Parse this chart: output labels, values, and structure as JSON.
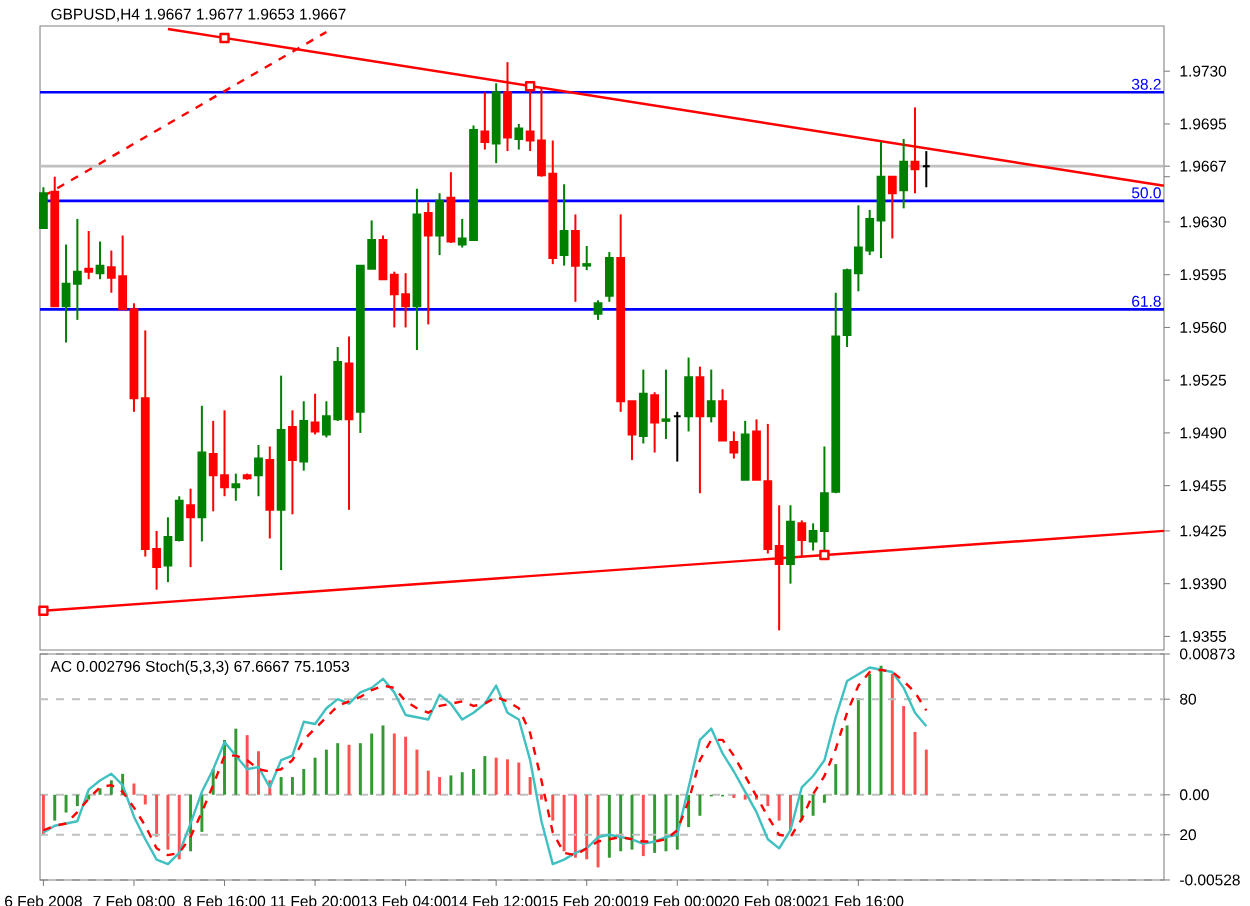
{
  "chart_data": [
    {
      "type": "candlestick",
      "title": "GBPUSD,H4 1.9667 1.9677 1.9653 1.9667",
      "categories": [
        null,
        null,
        null,
        null,
        null,
        null,
        null,
        null,
        null,
        null,
        null,
        null,
        null,
        null,
        null,
        null,
        null,
        null,
        null,
        null,
        null,
        null,
        null,
        null,
        null,
        null,
        null,
        null,
        null,
        null,
        null,
        null,
        null,
        null,
        null,
        null,
        null,
        null,
        null,
        null,
        null,
        null,
        null,
        null,
        null,
        null,
        null,
        null,
        null,
        null,
        null,
        null,
        null,
        null,
        null,
        null,
        null,
        null,
        null,
        null,
        null,
        null,
        null,
        null,
        null,
        null,
        null,
        null,
        null,
        null,
        null,
        null,
        null,
        null,
        null,
        null,
        null,
        null,
        null,
        null,
        null,
        null,
        null,
        null,
        null,
        null,
        null,
        null,
        null,
        null,
        null,
        null,
        null,
        null,
        null,
        null,
        null,
        null,
        null,
        null
      ],
      "ohlc": [
        [
          1.9626,
          1.9653,
          1.9626,
          1.9649
        ],
        [
          1.965,
          1.966,
          1.9574,
          1.9574
        ],
        [
          1.9574,
          1.9615,
          1.955,
          1.9589
        ],
        [
          1.9589,
          1.9632,
          1.9565,
          1.9597
        ],
        [
          1.9599,
          1.9624,
          1.9592,
          1.9597
        ],
        [
          1.9596,
          1.9617,
          1.9592,
          1.9601
        ],
        [
          1.96,
          1.9611,
          1.9583,
          1.9593
        ],
        [
          1.9594,
          1.9621,
          1.9572,
          1.9572
        ],
        [
          1.9572,
          1.9576,
          1.9504,
          1.9513
        ],
        [
          1.9513,
          1.9558,
          1.9408,
          1.9413
        ],
        [
          1.9413,
          1.9425,
          1.9386,
          1.9401
        ],
        [
          1.9402,
          1.9434,
          1.9391,
          1.9421
        ],
        [
          1.9419,
          1.9448,
          1.9418,
          1.9445
        ],
        [
          1.9442,
          1.9453,
          1.9401,
          1.9434
        ],
        [
          1.9434,
          1.9508,
          1.9418,
          1.9477
        ],
        [
          1.9476,
          1.9498,
          1.9438,
          1.9462
        ],
        [
          1.9462,
          1.9505,
          1.9448,
          1.9454
        ],
        [
          1.9454,
          1.9463,
          1.9445,
          1.9456
        ],
        [
          1.9462,
          1.9463,
          1.9459,
          1.946
        ],
        [
          1.9462,
          1.9482,
          1.9448,
          1.9473
        ],
        [
          1.9472,
          1.9481,
          1.942,
          1.9439
        ],
        [
          1.9439,
          1.9528,
          1.9399,
          1.9492
        ],
        [
          1.9494,
          1.9505,
          1.9436,
          1.9472
        ],
        [
          1.9471,
          1.9511,
          1.9465,
          1.9498
        ],
        [
          1.9497,
          1.9516,
          1.9489,
          1.9491
        ],
        [
          1.9489,
          1.9511,
          1.9487,
          1.9501
        ],
        [
          1.9499,
          1.9547,
          1.9498,
          1.9537
        ],
        [
          1.9536,
          1.9554,
          1.9439,
          1.9499
        ],
        [
          1.9504,
          1.9601,
          1.949,
          1.9601
        ],
        [
          1.9599,
          1.9631,
          1.9599,
          1.9618
        ],
        [
          1.9618,
          1.9621,
          1.9592,
          1.9592
        ],
        [
          1.9595,
          1.9597,
          1.956,
          1.9582
        ],
        [
          1.9582,
          1.9596,
          1.956,
          1.9574
        ],
        [
          1.9574,
          1.9652,
          1.9545,
          1.9635
        ],
        [
          1.9636,
          1.9643,
          1.9562,
          1.9621
        ],
        [
          1.9621,
          1.9649,
          1.9608,
          1.9644
        ],
        [
          1.9646,
          1.9663,
          1.9616,
          1.9617
        ],
        [
          1.9615,
          1.9632,
          1.9613,
          1.9619
        ],
        [
          1.9618,
          1.9694,
          1.9618,
          1.9691
        ],
        [
          1.969,
          1.9716,
          1.9678,
          1.9683
        ],
        [
          1.9682,
          1.9722,
          1.9669,
          1.9716
        ],
        [
          1.9716,
          1.9736,
          1.9677,
          1.9686
        ],
        [
          1.9685,
          1.9695,
          1.9678,
          1.9692
        ],
        [
          1.969,
          1.9719,
          1.9677,
          1.9684
        ],
        [
          1.9684,
          1.9719,
          1.966,
          1.9661
        ],
        [
          1.9662,
          1.9684,
          1.9602,
          1.9606
        ],
        [
          1.9608,
          1.9655,
          1.9601,
          1.9624
        ],
        [
          1.9624,
          1.9635,
          1.9577,
          1.9601
        ],
        [
          1.9601,
          1.9614,
          1.9598,
          1.9602
        ],
        [
          1.9569,
          1.9578,
          1.9565,
          1.9576
        ],
        [
          1.9581,
          1.961,
          1.9577,
          1.9606
        ],
        [
          1.9606,
          1.9635,
          1.9504,
          1.9511
        ],
        [
          1.9511,
          1.9511,
          1.9472,
          1.9489
        ],
        [
          1.9488,
          1.9532,
          1.9483,
          1.9516
        ],
        [
          1.9515,
          1.9517,
          1.9477,
          1.9497
        ],
        [
          1.9498,
          1.9532,
          1.9486,
          1.9499
        ],
        [
          1.9501,
          1.9504,
          1.9471,
          1.9501
        ],
        [
          1.9501,
          1.954,
          1.9491,
          1.9527
        ],
        [
          1.9527,
          1.9534,
          1.945,
          1.9501
        ],
        [
          1.9501,
          1.9532,
          1.9497,
          1.9511
        ],
        [
          1.9511,
          1.9519,
          1.9485,
          1.9485
        ],
        [
          1.9484,
          1.9491,
          1.9473,
          1.9477
        ],
        [
          1.9459,
          1.9498,
          1.9459,
          1.9489
        ],
        [
          1.9491,
          1.9499,
          1.9459,
          1.9459
        ],
        [
          1.9458,
          1.9496,
          1.941,
          1.9413
        ],
        [
          1.9415,
          1.9442,
          1.9359,
          1.9403
        ],
        [
          1.9403,
          1.9442,
          1.939,
          1.9431
        ],
        [
          1.943,
          1.9432,
          1.9408,
          1.9419
        ],
        [
          1.9418,
          1.943,
          1.9412,
          1.9425
        ],
        [
          1.9425,
          1.9481,
          1.9409,
          1.945
        ],
        [
          1.9451,
          1.9583,
          1.945,
          1.9554
        ],
        [
          1.9555,
          1.9599,
          1.9547,
          1.9598
        ],
        [
          1.9596,
          1.9641,
          1.9584,
          1.9613
        ],
        [
          1.9611,
          1.9638,
          1.9608,
          1.9632
        ],
        [
          1.9631,
          1.9683,
          1.9606,
          1.966
        ],
        [
          1.966,
          1.966,
          1.9619,
          1.9649
        ],
        [
          1.9651,
          1.9685,
          1.9639,
          1.967
        ],
        [
          1.967,
          1.9706,
          1.9649,
          1.9665
        ],
        [
          1.9667,
          1.9677,
          1.9653,
          1.9667
        ],
        null,
        null,
        null,
        null,
        null,
        null,
        null,
        null,
        null,
        null,
        null,
        null,
        null,
        null,
        null,
        null,
        null,
        null,
        null,
        null,
        null
      ],
      "colors": [
        "#008000",
        "#ff0000",
        "#008000",
        "#008000",
        "#ff0000",
        "#008000",
        "#ff0000",
        "#ff0000",
        "#ff0000",
        "#ff0000",
        "#ff0000",
        "#008000",
        "#008000",
        "#ff0000",
        "#008000",
        "#ff0000",
        "#ff0000",
        "#008000",
        "#ff0000",
        "#008000",
        "#ff0000",
        "#008000",
        "#ff0000",
        "#008000",
        "#ff0000",
        "#008000",
        "#008000",
        "#ff0000",
        "#008000",
        "#008000",
        "#ff0000",
        "#ff0000",
        "#ff0000",
        "#008000",
        "#ff0000",
        "#008000",
        "#ff0000",
        "#008000",
        "#008000",
        "#ff0000",
        "#008000",
        "#ff0000",
        "#008000",
        "#ff0000",
        "#ff0000",
        "#ff0000",
        "#008000",
        "#ff0000",
        "#008000",
        "#008000",
        "#008000",
        "#ff0000",
        "#ff0000",
        "#008000",
        "#ff0000",
        "#008000",
        "#000000",
        "#008000",
        "#ff0000",
        "#008000",
        "#ff0000",
        "#ff0000",
        "#008000",
        "#ff0000",
        "#ff0000",
        "#ff0000",
        "#008000",
        "#ff0000",
        "#008000",
        "#008000",
        "#008000",
        "#008000",
        "#008000",
        "#008000",
        "#008000",
        "#ff0000",
        "#008000",
        "#ff0000",
        "#000000",
        null,
        null,
        null,
        null,
        null,
        null,
        null,
        null,
        null,
        null,
        null,
        null,
        null,
        null,
        null,
        null,
        null,
        null,
        null,
        null,
        null
      ],
      "series": [
        {
          "type": "line",
          "color": "#ff0000",
          "values": [
            null,
            null,
            null,
            null,
            null,
            null,
            null,
            null,
            null,
            null,
            null,
            1.9758,
            null,
            null,
            null,
            null,
            null,
            null,
            null,
            null,
            null,
            null,
            null,
            null,
            null,
            null,
            null,
            null,
            null,
            null,
            null,
            null,
            null,
            null,
            null,
            null,
            null,
            null,
            null,
            null,
            null,
            null,
            null,
            null,
            null,
            null,
            null,
            null,
            null,
            null,
            null,
            null,
            null,
            null,
            null,
            null,
            null,
            null,
            null,
            null,
            null,
            null,
            null,
            null,
            null,
            null,
            null,
            null,
            null,
            null,
            null,
            null,
            null,
            null,
            null,
            null,
            null,
            null,
            null,
            null,
            null,
            null,
            null,
            null,
            null,
            null,
            null,
            null,
            null,
            null,
            null,
            null,
            null,
            null,
            null,
            null,
            null,
            null,
            null,
            1.9654
          ]
        },
        {
          "type": "line",
          "color": "#ff0000",
          "values": [
            1.9372,
            null,
            null,
            null,
            null,
            null,
            null,
            null,
            null,
            null,
            null,
            null,
            null,
            null,
            null,
            null,
            null,
            null,
            null,
            null,
            null,
            null,
            null,
            null,
            null,
            null,
            null,
            null,
            null,
            null,
            null,
            null,
            null,
            null,
            null,
            null,
            null,
            null,
            null,
            null,
            null,
            null,
            null,
            null,
            null,
            null,
            null,
            null,
            null,
            null,
            null,
            null,
            null,
            null,
            null,
            null,
            null,
            null,
            null,
            null,
            null,
            null,
            null,
            null,
            null,
            null,
            null,
            null,
            null,
            null,
            null,
            null,
            null,
            null,
            null,
            null,
            null,
            null,
            null,
            null,
            null,
            null,
            null,
            null,
            null,
            null,
            null,
            null,
            null,
            null,
            null,
            null,
            null,
            null,
            null,
            null,
            null,
            null,
            null,
            1.9425
          ]
        },
        {
          "type": "line",
          "color": "#ff0000",
          "line_style": "dashed",
          "values": [
            1.9647,
            null,
            null,
            null,
            null,
            null,
            null,
            null,
            null,
            null,
            null,
            null,
            null,
            null,
            null,
            null,
            null,
            null,
            null,
            null,
            null,
            null,
            null,
            null,
            null,
            1.9756,
            null,
            null,
            null,
            null,
            null,
            null,
            null,
            null,
            null,
            null,
            null,
            null,
            null,
            null,
            null,
            null,
            null,
            null,
            null,
            null,
            null,
            null,
            null,
            null,
            null,
            null,
            null,
            null,
            null,
            null,
            null,
            null,
            null,
            null,
            null,
            null,
            null,
            null,
            null,
            null,
            null,
            null,
            null,
            null,
            null,
            null,
            null,
            null,
            null,
            null,
            null,
            null,
            null,
            null,
            null,
            null,
            null,
            null,
            null,
            null,
            null,
            null,
            null,
            null,
            null,
            null,
            null,
            null,
            null,
            null,
            null,
            null,
            null,
            null
          ]
        },
        {
          "type": "scatter",
          "color": "#ff0000",
          "marker": "square",
          "values": [
            1.9372,
            null,
            null,
            null,
            null,
            null,
            null,
            null,
            null,
            null,
            null,
            null,
            null,
            null,
            null,
            null,
            1.9752,
            null,
            null,
            null,
            null,
            null,
            null,
            null,
            null,
            null,
            null,
            null,
            null,
            null,
            null,
            null,
            null,
            null,
            null,
            null,
            null,
            null,
            null,
            null,
            null,
            null,
            null,
            1.972,
            null,
            null,
            null,
            null,
            null,
            null,
            null,
            null,
            null,
            null,
            null,
            null,
            null,
            null,
            null,
            null,
            null,
            null,
            null,
            null,
            null,
            null,
            null,
            null,
            null,
            1.9409,
            null,
            null,
            null,
            null,
            null,
            null,
            null,
            null,
            null,
            null,
            null,
            null,
            null,
            null,
            null,
            null,
            null,
            null,
            null,
            null,
            null,
            null,
            null,
            null,
            null,
            null,
            null,
            null,
            null,
            null
          ]
        }
      ],
      "ylim": [
        1.9346,
        1.976
      ],
      "yticks": [
        {
          "value": 1.973,
          "label": "1.9730"
        },
        1.9695,
        1.9667,
        {
          "value": 1.966,
          "label": null
        },
        {
          "value": 1.963,
          "label": "1.9630"
        },
        1.9595,
        {
          "value": 1.956,
          "label": "1.9560"
        },
        1.9525,
        {
          "value": 1.949,
          "label": "1.9490"
        },
        1.9455,
        1.9425,
        {
          "value": 1.939,
          "label": "1.9390"
        },
        1.9355
      ],
      "ref_lines": [
        {
          "axis": "y",
          "value": 1.9716,
          "color": "#0000ff"
        },
        {
          "axis": "y",
          "value": 1.9644,
          "color": "#0000ff"
        },
        {
          "axis": "y",
          "value": 1.9572,
          "color": "#0000ff"
        },
        {
          "axis": "y",
          "value": 1.9667,
          "color": "#c0c0c0"
        }
      ],
      "annotations": [
        {
          "text": "38.2",
          "y": 1.9716
        },
        {
          "text": "50.0",
          "y": 1.9644
        },
        {
          "text": "61.8",
          "y": 1.9572
        }
      ],
      "tick_labels": "y"
    },
    {
      "type": "bar",
      "title": "AC 0.002796  Stoch(5,3,3) 67.6667 75.1053",
      "categories": [
        "6 Feb 2008",
        null,
        null,
        null,
        null,
        null,
        null,
        null,
        "7 Feb 08:00",
        null,
        null,
        null,
        null,
        null,
        null,
        null,
        "8 Feb 16:00",
        null,
        null,
        null,
        null,
        null,
        null,
        null,
        "11 Feb 20:00",
        null,
        null,
        null,
        null,
        null,
        null,
        null,
        "13 Feb 04:00",
        null,
        null,
        null,
        null,
        null,
        null,
        null,
        "14 Feb 12:00",
        null,
        null,
        null,
        null,
        null,
        null,
        null,
        "15 Feb 20:00",
        null,
        null,
        null,
        null,
        null,
        null,
        null,
        "19 Feb 00:00",
        null,
        null,
        null,
        null,
        null,
        null,
        null,
        "20 Feb 08:00",
        null,
        null,
        null,
        null,
        null,
        null,
        null,
        "21 Feb 16:00",
        null,
        null,
        null,
        null,
        null,
        null,
        null,
        null,
        null,
        null,
        null,
        null,
        null,
        null,
        null,
        null,
        null,
        null,
        null,
        null,
        null,
        null,
        null,
        null,
        null,
        null,
        null
      ],
      "series": [
        {
          "values": [
            -0.0025,
            -0.0016,
            -0.0011,
            -0.0007,
            -0.0003,
            0.0004,
            0.0009,
            0.0013,
            0.0007,
            -0.0006,
            -0.0026,
            -0.0034,
            -0.004,
            -0.0035,
            -0.0023,
            0.0016,
            0.0034,
            0.0041,
            0.0037,
            0.0027,
            0.0009,
            0.0011,
            0.0011,
            0.0016,
            0.0023,
            0.0028,
            0.0032,
            0.0031,
            0.0032,
            0.0038,
            0.0043,
            0.0038,
            0.0036,
            0.0028,
            0.0015,
            0.0011,
            0.0012,
            0.0014,
            0.0016,
            0.0024,
            0.0023,
            0.0022,
            0.002,
            0.0011,
            -0.0003,
            -0.0016,
            -0.0035,
            -0.0039,
            -0.004,
            -0.0045,
            -0.0039,
            -0.0035,
            -0.0034,
            -0.0038,
            -0.0036,
            -0.0035,
            -0.0034,
            -0.002,
            -0.0013,
            -0.0001,
            -0.0001,
            -0.0002,
            -0.0003,
            -0.0003,
            -0.0007,
            -0.0016,
            -0.0022,
            -0.0016,
            -0.0013,
            -0.0005,
            0.0019,
            0.0043,
            0.006,
            0.0075,
            0.008,
            0.0075,
            0.0055,
            0.0039,
            0.0028,
            null,
            null,
            null,
            null,
            null,
            null,
            null,
            null,
            null,
            null,
            null,
            null,
            null,
            null,
            null,
            null,
            null,
            null,
            null,
            null,
            null
          ],
          "colors": [
            "#ff5050",
            "#339933",
            "#339933",
            "#339933",
            "#339933",
            "#339933",
            "#339933",
            "#339933",
            "#ff5050",
            "#ff5050",
            "#ff5050",
            "#ff5050",
            "#ff5050",
            "#339933",
            "#339933",
            "#339933",
            "#339933",
            "#339933",
            "#ff5050",
            "#ff5050",
            "#ff5050",
            "#339933",
            "#339933",
            "#339933",
            "#339933",
            "#339933",
            "#339933",
            "#ff5050",
            "#339933",
            "#339933",
            "#339933",
            "#ff5050",
            "#ff5050",
            "#ff5050",
            "#ff5050",
            "#ff5050",
            "#339933",
            "#339933",
            "#339933",
            "#339933",
            "#ff5050",
            "#ff5050",
            "#ff5050",
            "#ff5050",
            "#ff5050",
            "#ff5050",
            "#ff5050",
            "#ff5050",
            "#ff5050",
            "#ff5050",
            "#339933",
            "#339933",
            "#339933",
            "#ff5050",
            "#339933",
            "#339933",
            "#339933",
            "#339933",
            "#339933",
            "#339933",
            "#339933",
            "#ff5050",
            "#ff5050",
            "#ff5050",
            "#ff5050",
            "#ff5050",
            "#ff5050",
            "#339933",
            "#339933",
            "#339933",
            "#339933",
            "#339933",
            "#339933",
            "#339933",
            "#339933",
            "#ff5050",
            "#ff5050",
            "#ff5050",
            "#ff5050",
            null,
            null,
            null,
            null,
            null,
            null,
            null,
            null,
            null,
            null,
            null,
            null,
            null,
            null,
            null,
            null,
            null,
            null,
            null,
            null,
            null
          ]
        },
        {
          "type": "line",
          "axis": "y2",
          "color": "#40c0c0",
          "values": [
            21,
            24,
            25,
            26,
            40,
            44,
            47,
            42,
            28,
            18,
            9,
            7,
            12,
            25,
            39,
            49,
            61,
            55,
            49,
            50,
            41,
            53,
            55,
            70,
            69,
            76,
            80,
            78,
            83,
            85,
            89,
            83,
            73,
            72,
            71,
            82,
            78,
            71,
            74,
            78,
            86,
            74,
            71,
            53,
            26,
            7,
            9,
            12,
            14,
            19,
            20,
            19,
            18,
            16,
            17,
            19,
            20,
            41,
            62,
            67,
            56,
            48,
            39,
            30,
            18,
            14,
            22,
            41,
            46,
            53,
            72,
            88,
            91,
            94,
            93,
            92,
            85,
            74,
            68,
            null,
            null,
            null,
            null,
            null,
            null,
            null,
            null,
            null,
            null,
            null,
            null,
            null,
            null,
            null,
            null,
            null,
            null,
            null,
            null,
            null
          ]
        },
        {
          "type": "line",
          "axis": "y2",
          "color": "#ff0000",
          "line_style": "dashed",
          "values": [
            22,
            24,
            25,
            30,
            36,
            41,
            42,
            39,
            32,
            24,
            14,
            11,
            12,
            19,
            30,
            42,
            55,
            55,
            53,
            49,
            48,
            49,
            53,
            62,
            67,
            72,
            77,
            79,
            81,
            84,
            86,
            85,
            79,
            76,
            74,
            77,
            78,
            79,
            77,
            78,
            81,
            79,
            76,
            65,
            44,
            21,
            12,
            11,
            14,
            17,
            18,
            19,
            18,
            17,
            17,
            18,
            22,
            35,
            53,
            62,
            62,
            55,
            46,
            37,
            28,
            20,
            19,
            27,
            38,
            46,
            58,
            74,
            86,
            92,
            93,
            92,
            88,
            83,
            75,
            null,
            null,
            null,
            null,
            null,
            null,
            null,
            null,
            null,
            null,
            null,
            null,
            null,
            null,
            null,
            null,
            null,
            null,
            null,
            null,
            null
          ]
        }
      ],
      "ylim": [
        -0.00528,
        0.00873
      ],
      "yticks": [
        -0.00528,
        {
          "value": 0,
          "label": "0.00"
        },
        0.00873
      ],
      "y2lim": [
        0,
        100
      ],
      "y2ticks": [
        20,
        80
      ],
      "grid": "y"
    }
  ]
}
